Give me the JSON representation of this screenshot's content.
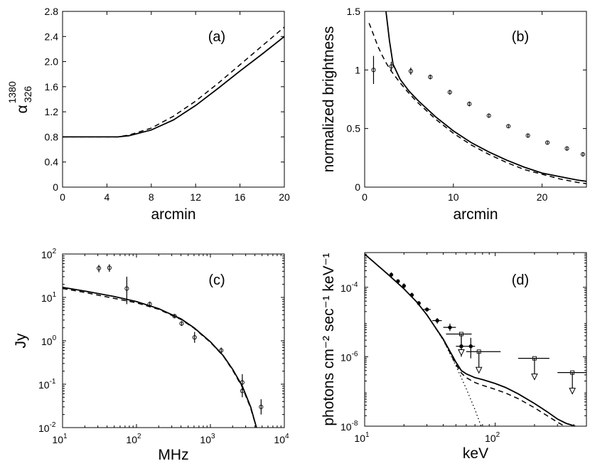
{
  "chart_data": [
    {
      "id": "a",
      "type": "line",
      "panel_label": "(a)",
      "xlabel": "arcmin",
      "ylabel_base": "α",
      "ylabel_sup": "1380",
      "ylabel_sub": "326",
      "xscale": "linear",
      "yscale": "linear",
      "xlim": [
        0,
        20
      ],
      "ylim": [
        0,
        2.8
      ],
      "xticks": [
        0,
        4,
        8,
        12,
        16,
        20
      ],
      "xticklabels": [
        "0",
        "4",
        "8",
        "12",
        "16",
        "20"
      ],
      "yticks": [
        0,
        0.4,
        0.8,
        1.2,
        1.6,
        2.0,
        2.4,
        2.8
      ],
      "yticklabels": [
        "0",
        "0.4",
        "0.8",
        "1.2",
        "1.6",
        "2.0",
        "2.4",
        "2.8"
      ],
      "series": [
        {
          "name": "solid",
          "style": "solid",
          "x": [
            0,
            2,
            4,
            5,
            6,
            8,
            10,
            12,
            14,
            16,
            18,
            20
          ],
          "y": [
            0.8,
            0.8,
            0.8,
            0.8,
            0.82,
            0.91,
            1.07,
            1.3,
            1.57,
            1.85,
            2.12,
            2.4
          ]
        },
        {
          "name": "dashed",
          "style": "dashed",
          "x": [
            0,
            2,
            4,
            5,
            6,
            8,
            10,
            12,
            14,
            16,
            18,
            20
          ],
          "y": [
            0.8,
            0.8,
            0.8,
            0.8,
            0.83,
            0.94,
            1.13,
            1.37,
            1.65,
            1.95,
            2.25,
            2.55
          ]
        }
      ]
    },
    {
      "id": "b",
      "type": "line",
      "panel_label": "(b)",
      "xlabel": "arcmin",
      "ylabel": "normalized brightness",
      "xscale": "linear",
      "yscale": "linear",
      "xlim": [
        0,
        25
      ],
      "ylim": [
        0,
        1.5
      ],
      "xticks": [
        0,
        10,
        20
      ],
      "xticklabels": [
        "0",
        "10",
        "20"
      ],
      "yticks": [
        0,
        0.5,
        1,
        1.5
      ],
      "yticklabels": [
        "0",
        "0.5",
        "1",
        "1.5"
      ],
      "series": [
        {
          "name": "solid",
          "style": "solid",
          "x": [
            2.4,
            2.8,
            3.2,
            4,
            5,
            6,
            8,
            10,
            12,
            14,
            16,
            18,
            20,
            22,
            24,
            25
          ],
          "y": [
            1.5,
            1.25,
            1.05,
            0.92,
            0.82,
            0.74,
            0.6,
            0.48,
            0.38,
            0.3,
            0.23,
            0.17,
            0.12,
            0.09,
            0.06,
            0.05
          ]
        },
        {
          "name": "dashed",
          "style": "dashed",
          "x": [
            0.5,
            1,
            1.5,
            2,
            2.5,
            3,
            4,
            5,
            6,
            8,
            10,
            12,
            14,
            16,
            18,
            20,
            22,
            24,
            25
          ],
          "y": [
            1.4,
            1.3,
            1.2,
            1.12,
            1.05,
            0.99,
            0.89,
            0.8,
            0.72,
            0.58,
            0.46,
            0.36,
            0.28,
            0.21,
            0.15,
            0.11,
            0.07,
            0.04,
            0.03
          ]
        },
        {
          "name": "data",
          "style": "points",
          "x": [
            1,
            3,
            5.2,
            7.4,
            9.6,
            11.8,
            14,
            16.2,
            18.4,
            20.6,
            22.8,
            24.6
          ],
          "y": [
            1.0,
            1.03,
            0.99,
            0.94,
            0.81,
            0.71,
            0.61,
            0.52,
            0.44,
            0.38,
            0.33,
            0.28
          ],
          "err": [
            0.12,
            0.04,
            0.03,
            0.02,
            0.02,
            0.02,
            0.015,
            0.015,
            0.015,
            0.015,
            0.015,
            0.015
          ]
        }
      ]
    },
    {
      "id": "c",
      "type": "line",
      "panel_label": "(c)",
      "xlabel": "MHz",
      "ylabel": "Jy",
      "xscale": "log",
      "yscale": "log",
      "xlim": [
        10,
        10000
      ],
      "ylim": [
        0.01,
        100
      ],
      "xticks": [
        10,
        100,
        1000,
        10000
      ],
      "xtick_base": "10",
      "xtick_exp": [
        "1",
        "2",
        "3",
        "4"
      ],
      "yticks": [
        0.01,
        0.1,
        1,
        10,
        100
      ],
      "ytick_base": "10",
      "ytick_exp": [
        "-2",
        "-1",
        "0",
        "1",
        "2"
      ],
      "series": [
        {
          "name": "solid",
          "style": "solid",
          "x": [
            10,
            20,
            50,
            100,
            200,
            400,
            600,
            1000,
            1500,
            2000,
            2700,
            3500,
            4200
          ],
          "y": [
            17,
            14,
            10.5,
            8,
            5.5,
            3.2,
            2.0,
            0.95,
            0.45,
            0.22,
            0.09,
            0.03,
            0.01
          ]
        },
        {
          "name": "dashed",
          "style": "dashed",
          "x": [
            10,
            20,
            50,
            100,
            200,
            400,
            600,
            1000,
            1500,
            2000,
            2700,
            3500,
            4200
          ],
          "y": [
            16,
            13,
            9.5,
            7.5,
            5.3,
            3.1,
            1.95,
            0.92,
            0.44,
            0.21,
            0.085,
            0.028,
            0.01
          ]
        },
        {
          "name": "data",
          "style": "points",
          "x": [
            31,
            43,
            74,
            151,
            327,
            408,
            611,
            1400,
            2700,
            2700,
            4850
          ],
          "y": [
            47,
            48,
            16,
            7,
            3.7,
            2.5,
            1.2,
            0.6,
            0.11,
            0.07,
            0.03
          ],
          "err_lo": [
            38,
            39,
            7,
            6.2,
            3.4,
            2.2,
            0.9,
            0.52,
            0.07,
            0.05,
            0.02
          ],
          "err_hi": [
            56,
            58,
            30,
            8,
            4.0,
            2.8,
            1.6,
            0.7,
            0.17,
            0.1,
            0.045
          ]
        }
      ]
    },
    {
      "id": "d",
      "type": "line",
      "panel_label": "(d)",
      "xlabel": "keV",
      "ylabel": "photons cm⁻² sec⁻¹ keV⁻¹",
      "xscale": "log",
      "yscale": "log",
      "xlim": [
        10,
        500
      ],
      "ylim": [
        1e-08,
        0.001
      ],
      "xticks": [
        10,
        100
      ],
      "xtick_base": "10",
      "xtick_exp": [
        "1",
        "2"
      ],
      "yticks": [
        1e-08,
        1e-06,
        0.0001
      ],
      "ytick_base": "10",
      "ytick_exp": [
        "-8",
        "-6",
        "-4"
      ],
      "series": [
        {
          "name": "solid",
          "style": "solid",
          "x": [
            10,
            15,
            20,
            25,
            30,
            40,
            50,
            55,
            60,
            70,
            80,
            100,
            120,
            150,
            200,
            250,
            300,
            350,
            410
          ],
          "y": [
            0.0009,
            0.00024,
            9e-05,
            3.8e-05,
            1.6e-05,
            3.2e-06,
            7e-07,
            4e-07,
            3.2e-07,
            2.5e-07,
            2.2e-07,
            1.7e-07,
            1.3e-07,
            8.5e-08,
            4.5e-08,
            2.6e-08,
            1.6e-08,
            1.2e-08,
            1e-08
          ]
        },
        {
          "name": "dashed",
          "style": "dashed",
          "x": [
            10,
            15,
            20,
            25,
            30,
            40,
            50,
            55,
            60,
            70,
            80,
            100,
            120,
            150,
            200,
            250,
            300,
            340
          ],
          "y": [
            0.0009,
            0.00024,
            9e-05,
            3.8e-05,
            1.6e-05,
            3.1e-06,
            6e-07,
            3.4e-07,
            2.5e-07,
            1.8e-07,
            1.5e-07,
            1.15e-07,
            9e-08,
            6.2e-08,
            3.4e-08,
            2e-08,
            1.3e-08,
            1e-08
          ]
        },
        {
          "name": "dotted",
          "style": "dotted",
          "x": [
            10,
            15,
            20,
            25,
            30,
            40,
            50,
            60,
            70,
            78
          ],
          "y": [
            0.0009,
            0.00024,
            9e-05,
            3.8e-05,
            1.6e-05,
            3e-06,
            5.5e-07,
            1.2e-07,
            3e-08,
            1e-08
          ]
        },
        {
          "name": "data",
          "style": "points",
          "points": [
            {
              "x": 16,
              "y": 0.00023,
              "xlo": 15.5,
              "xhi": 16.5,
              "ylo": 0.00019,
              "yhi": 0.00027,
              "marker": "circle"
            },
            {
              "x": 18,
              "y": 0.00015,
              "xlo": 17.5,
              "xhi": 18.5,
              "ylo": 0.00013,
              "yhi": 0.00017,
              "marker": "circle"
            },
            {
              "x": 20,
              "y": 0.00011,
              "xlo": 19.5,
              "xhi": 20.5,
              "ylo": 9.5e-05,
              "yhi": 0.00013,
              "marker": "circle"
            },
            {
              "x": 23,
              "y": 6e-05,
              "xlo": 22.5,
              "xhi": 23.5,
              "ylo": 5e-05,
              "yhi": 7e-05,
              "marker": "circle"
            },
            {
              "x": 26,
              "y": 3.5e-05,
              "xlo": 25.5,
              "xhi": 26.5,
              "ylo": 3e-05,
              "yhi": 4e-05,
              "marker": "circle"
            },
            {
              "x": 30,
              "y": 2.3e-05,
              "xlo": 28,
              "xhi": 32,
              "ylo": 2e-05,
              "yhi": 2.6e-05,
              "marker": "circle"
            },
            {
              "x": 36,
              "y": 1.1e-05,
              "xlo": 33,
              "xhi": 39,
              "ylo": 9e-06,
              "yhi": 1.3e-05,
              "marker": "circle"
            },
            {
              "x": 45,
              "y": 7e-06,
              "xlo": 40,
              "xhi": 50,
              "ylo": 5.5e-06,
              "yhi": 9e-06,
              "marker": "circle"
            },
            {
              "x": 55,
              "y": 2e-06,
              "xlo": 50,
              "xhi": 60,
              "ylo": 1e-06,
              "yhi": 4e-06,
              "marker": "circle"
            },
            {
              "x": 65,
              "y": 2e-06,
              "xlo": 60,
              "xhi": 70,
              "ylo": 9e-07,
              "yhi": 3.5e-06,
              "marker": "circle"
            },
            {
              "x": 55,
              "y": 4.5e-06,
              "xlo": 42,
              "xhi": 66,
              "upper_limit": true,
              "marker": "square"
            },
            {
              "x": 75,
              "y": 1.4e-06,
              "xlo": 60,
              "xhi": 110,
              "upper_limit": true,
              "marker": "square"
            },
            {
              "x": 200,
              "y": 9e-07,
              "xlo": 150,
              "xhi": 260,
              "upper_limit": true,
              "marker": "square"
            },
            {
              "x": 390,
              "y": 3.5e-07,
              "xlo": 300,
              "xhi": 500,
              "upper_limit": true,
              "marker": "square"
            }
          ]
        }
      ]
    }
  ]
}
